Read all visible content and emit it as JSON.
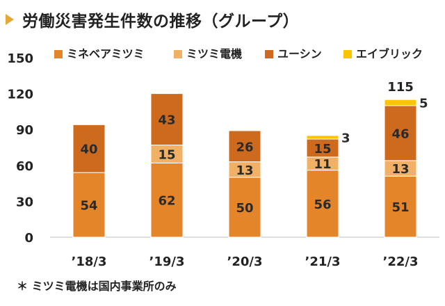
{
  "title": "労働災害発生件数の推移（グループ）",
  "note": "＊ ミツミ電機は国内事業所のみ",
  "colors": {
    "title_marker": "#e8a838"
  },
  "chart_data": {
    "type": "bar",
    "stacked": true,
    "categories": [
      "’18/3",
      "’19/3",
      "’20/3",
      "’21/3",
      "’22/3"
    ],
    "series": [
      {
        "name": "ミネベアミツミ",
        "values": [
          54,
          62,
          50,
          56,
          51
        ],
        "color": "#e4852a",
        "label_color": "#2a2a2a"
      },
      {
        "name": "ミツミ電機",
        "values": [
          0,
          15,
          13,
          11,
          13
        ],
        "color": "#f0b166",
        "label_color": "#2a2a2a"
      },
      {
        "name": "ユーシン",
        "values": [
          40,
          43,
          26,
          15,
          46
        ],
        "color": "#cd6a1d",
        "label_color": "#2a2a2a"
      },
      {
        "name": "エイブリック",
        "values": [
          null,
          null,
          null,
          3,
          5
        ],
        "color": "#fac400",
        "label_color": "#2a2a2a"
      }
    ],
    "totals": [
      null,
      null,
      null,
      null,
      115
    ],
    "ylim": [
      0,
      150
    ],
    "yticks": [
      "0",
      "30",
      "60",
      "90",
      "120",
      "150"
    ],
    "grid": false,
    "legend_position": "top"
  }
}
